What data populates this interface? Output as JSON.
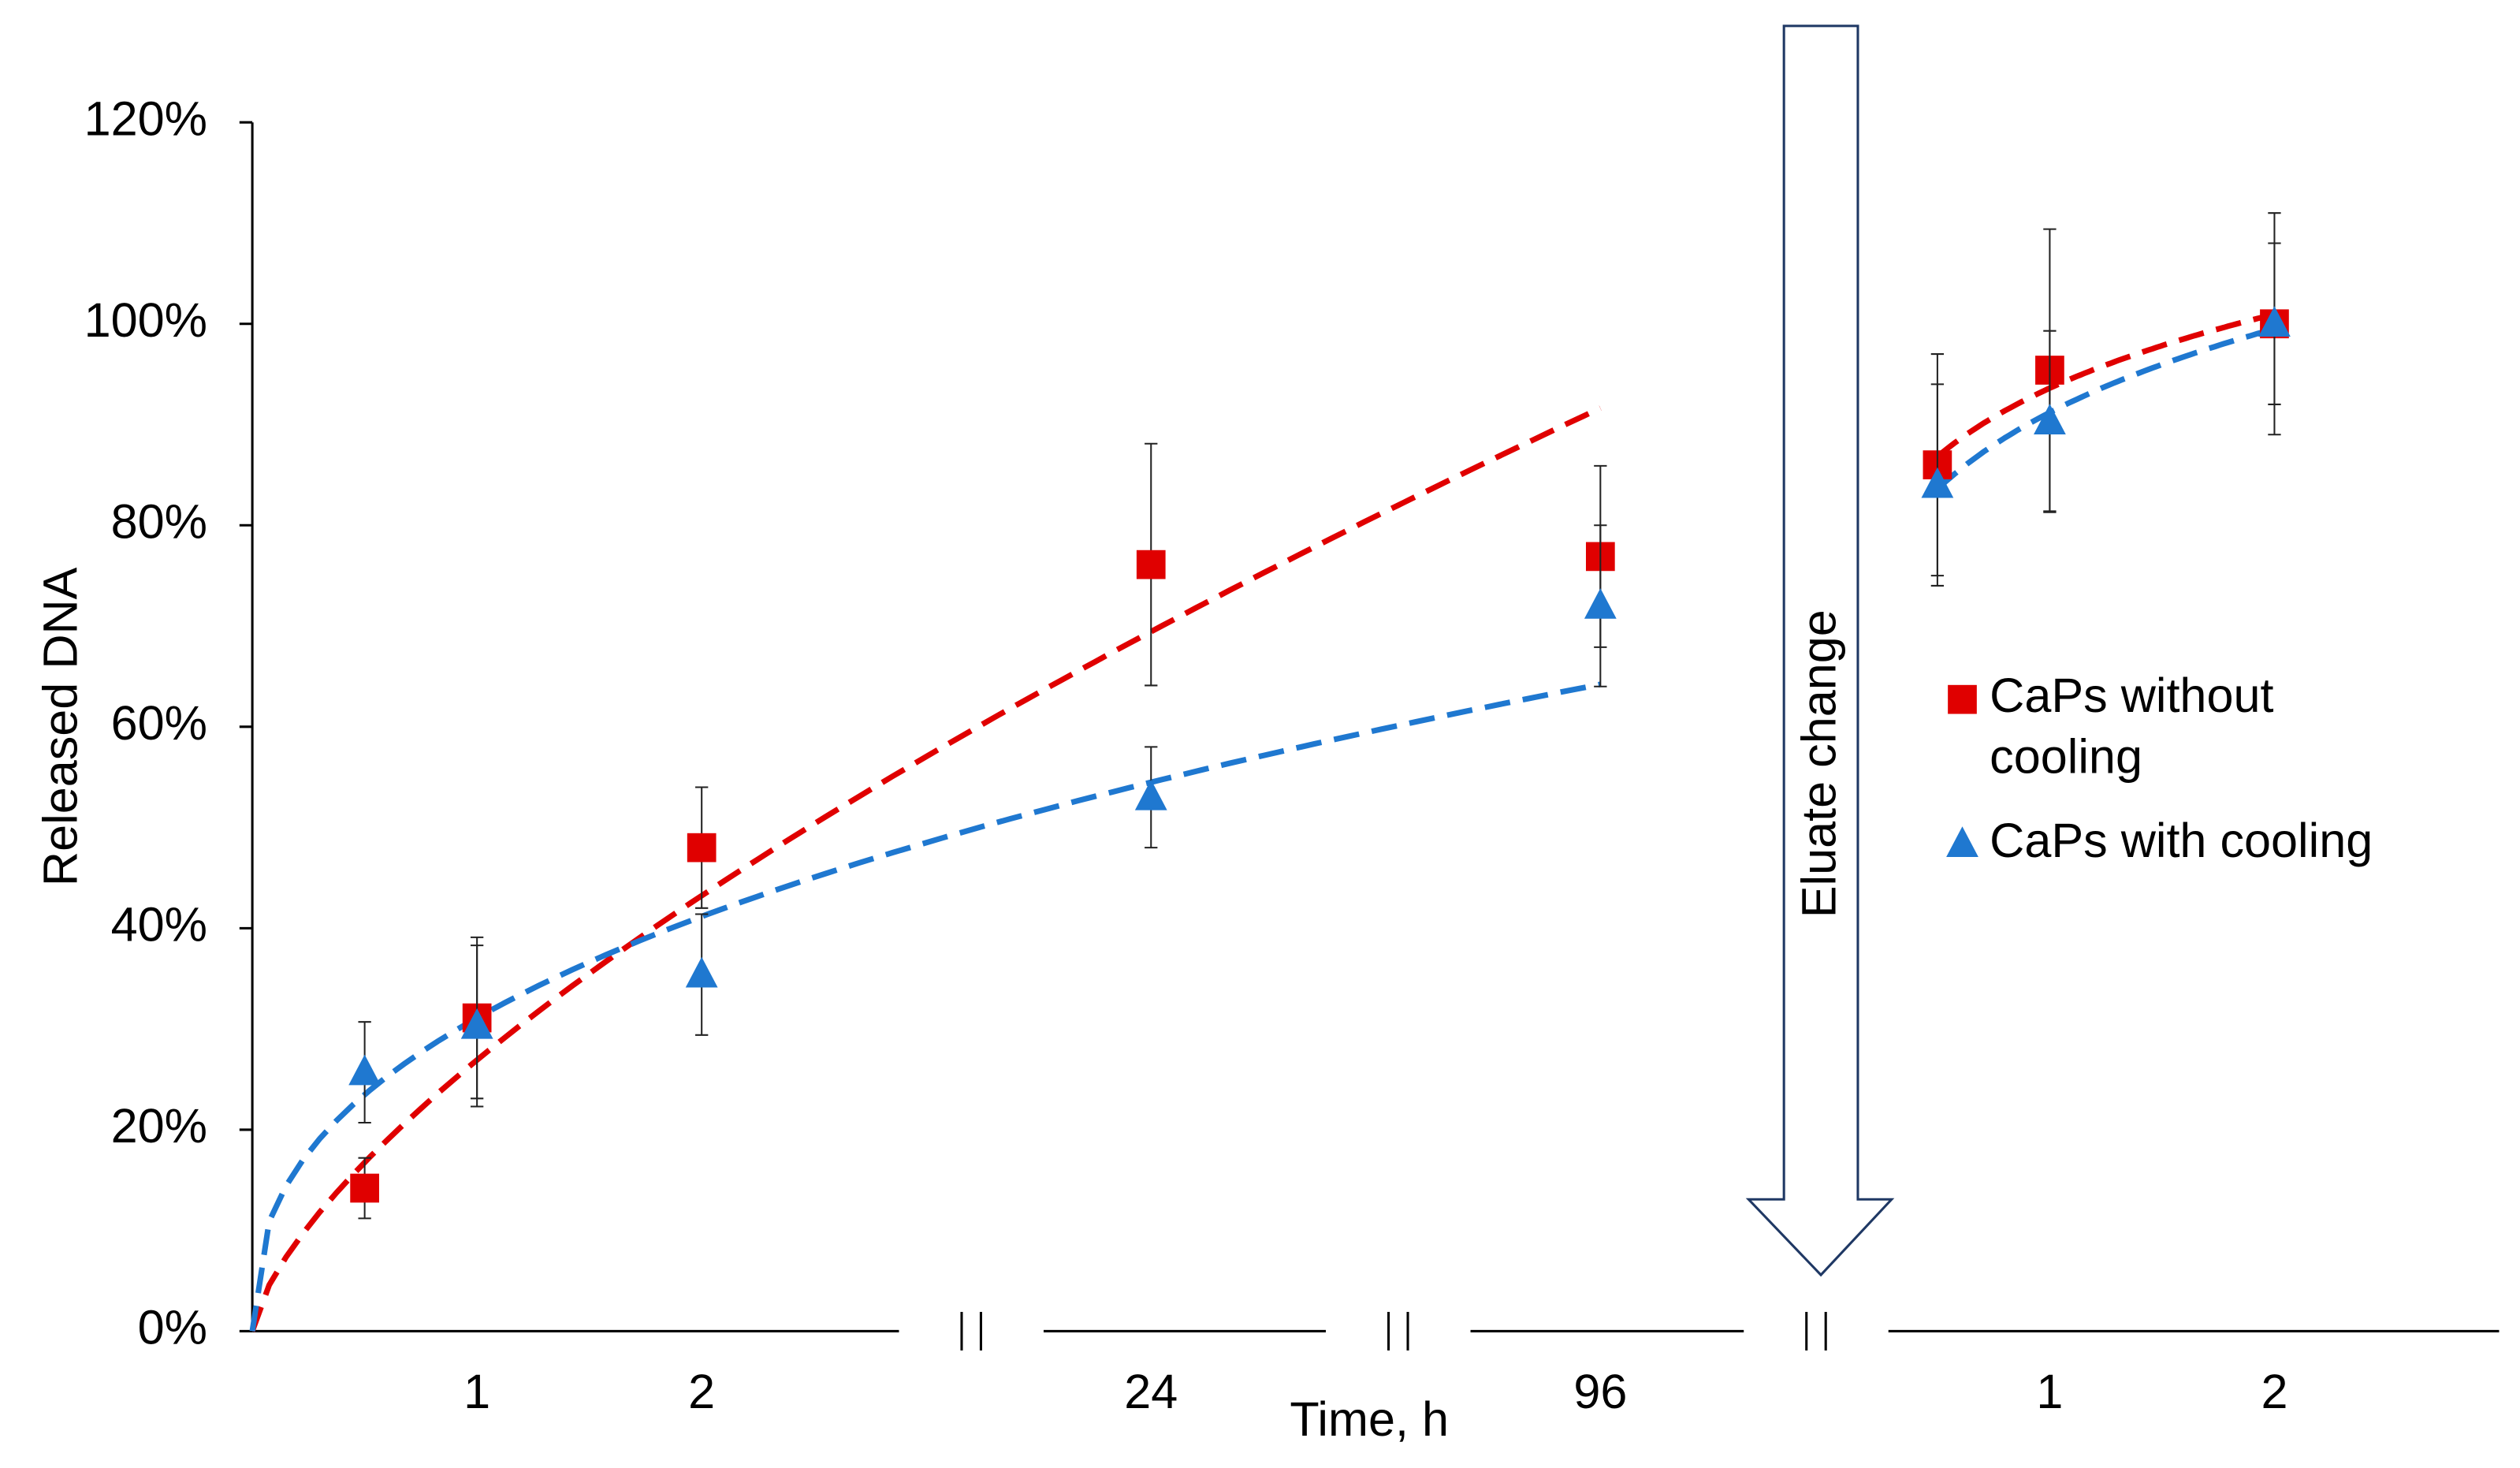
{
  "chart_data": {
    "type": "scatter",
    "x_label": "Time, h",
    "y_label": "Released DNA",
    "annotation": "Eluate change",
    "categories": [
      null,
      "1",
      "2",
      "24",
      "96",
      null,
      "1",
      "2"
    ],
    "ylim": [
      0,
      120
    ],
    "yticks": [
      {
        "value": 0,
        "label": "0%"
      },
      {
        "value": 20,
        "label": "20%"
      },
      {
        "value": 40,
        "label": "40%"
      },
      {
        "value": 60,
        "label": "60%"
      },
      {
        "value": 80,
        "label": "80%"
      },
      {
        "value": 100,
        "label": "100%"
      },
      {
        "value": 120,
        "label": "120%"
      }
    ],
    "series": [
      {
        "name": "CaPs without cooling",
        "color": "#e00000",
        "marker": "square",
        "values": [
          14.2,
          31.1,
          48,
          76.1,
          76.9,
          86,
          95.4,
          100
        ],
        "errors": [
          3,
          8,
          6,
          12,
          9,
          11,
          14,
          11
        ]
      },
      {
        "name": "CaPs with cooling",
        "color": "#1f78d0",
        "marker": "triangle",
        "values": [
          25.7,
          30.3,
          35.4,
          53,
          72,
          84,
          90.3,
          100
        ],
        "errors": [
          5,
          8,
          6,
          5,
          8,
          10,
          9,
          8
        ]
      }
    ]
  }
}
